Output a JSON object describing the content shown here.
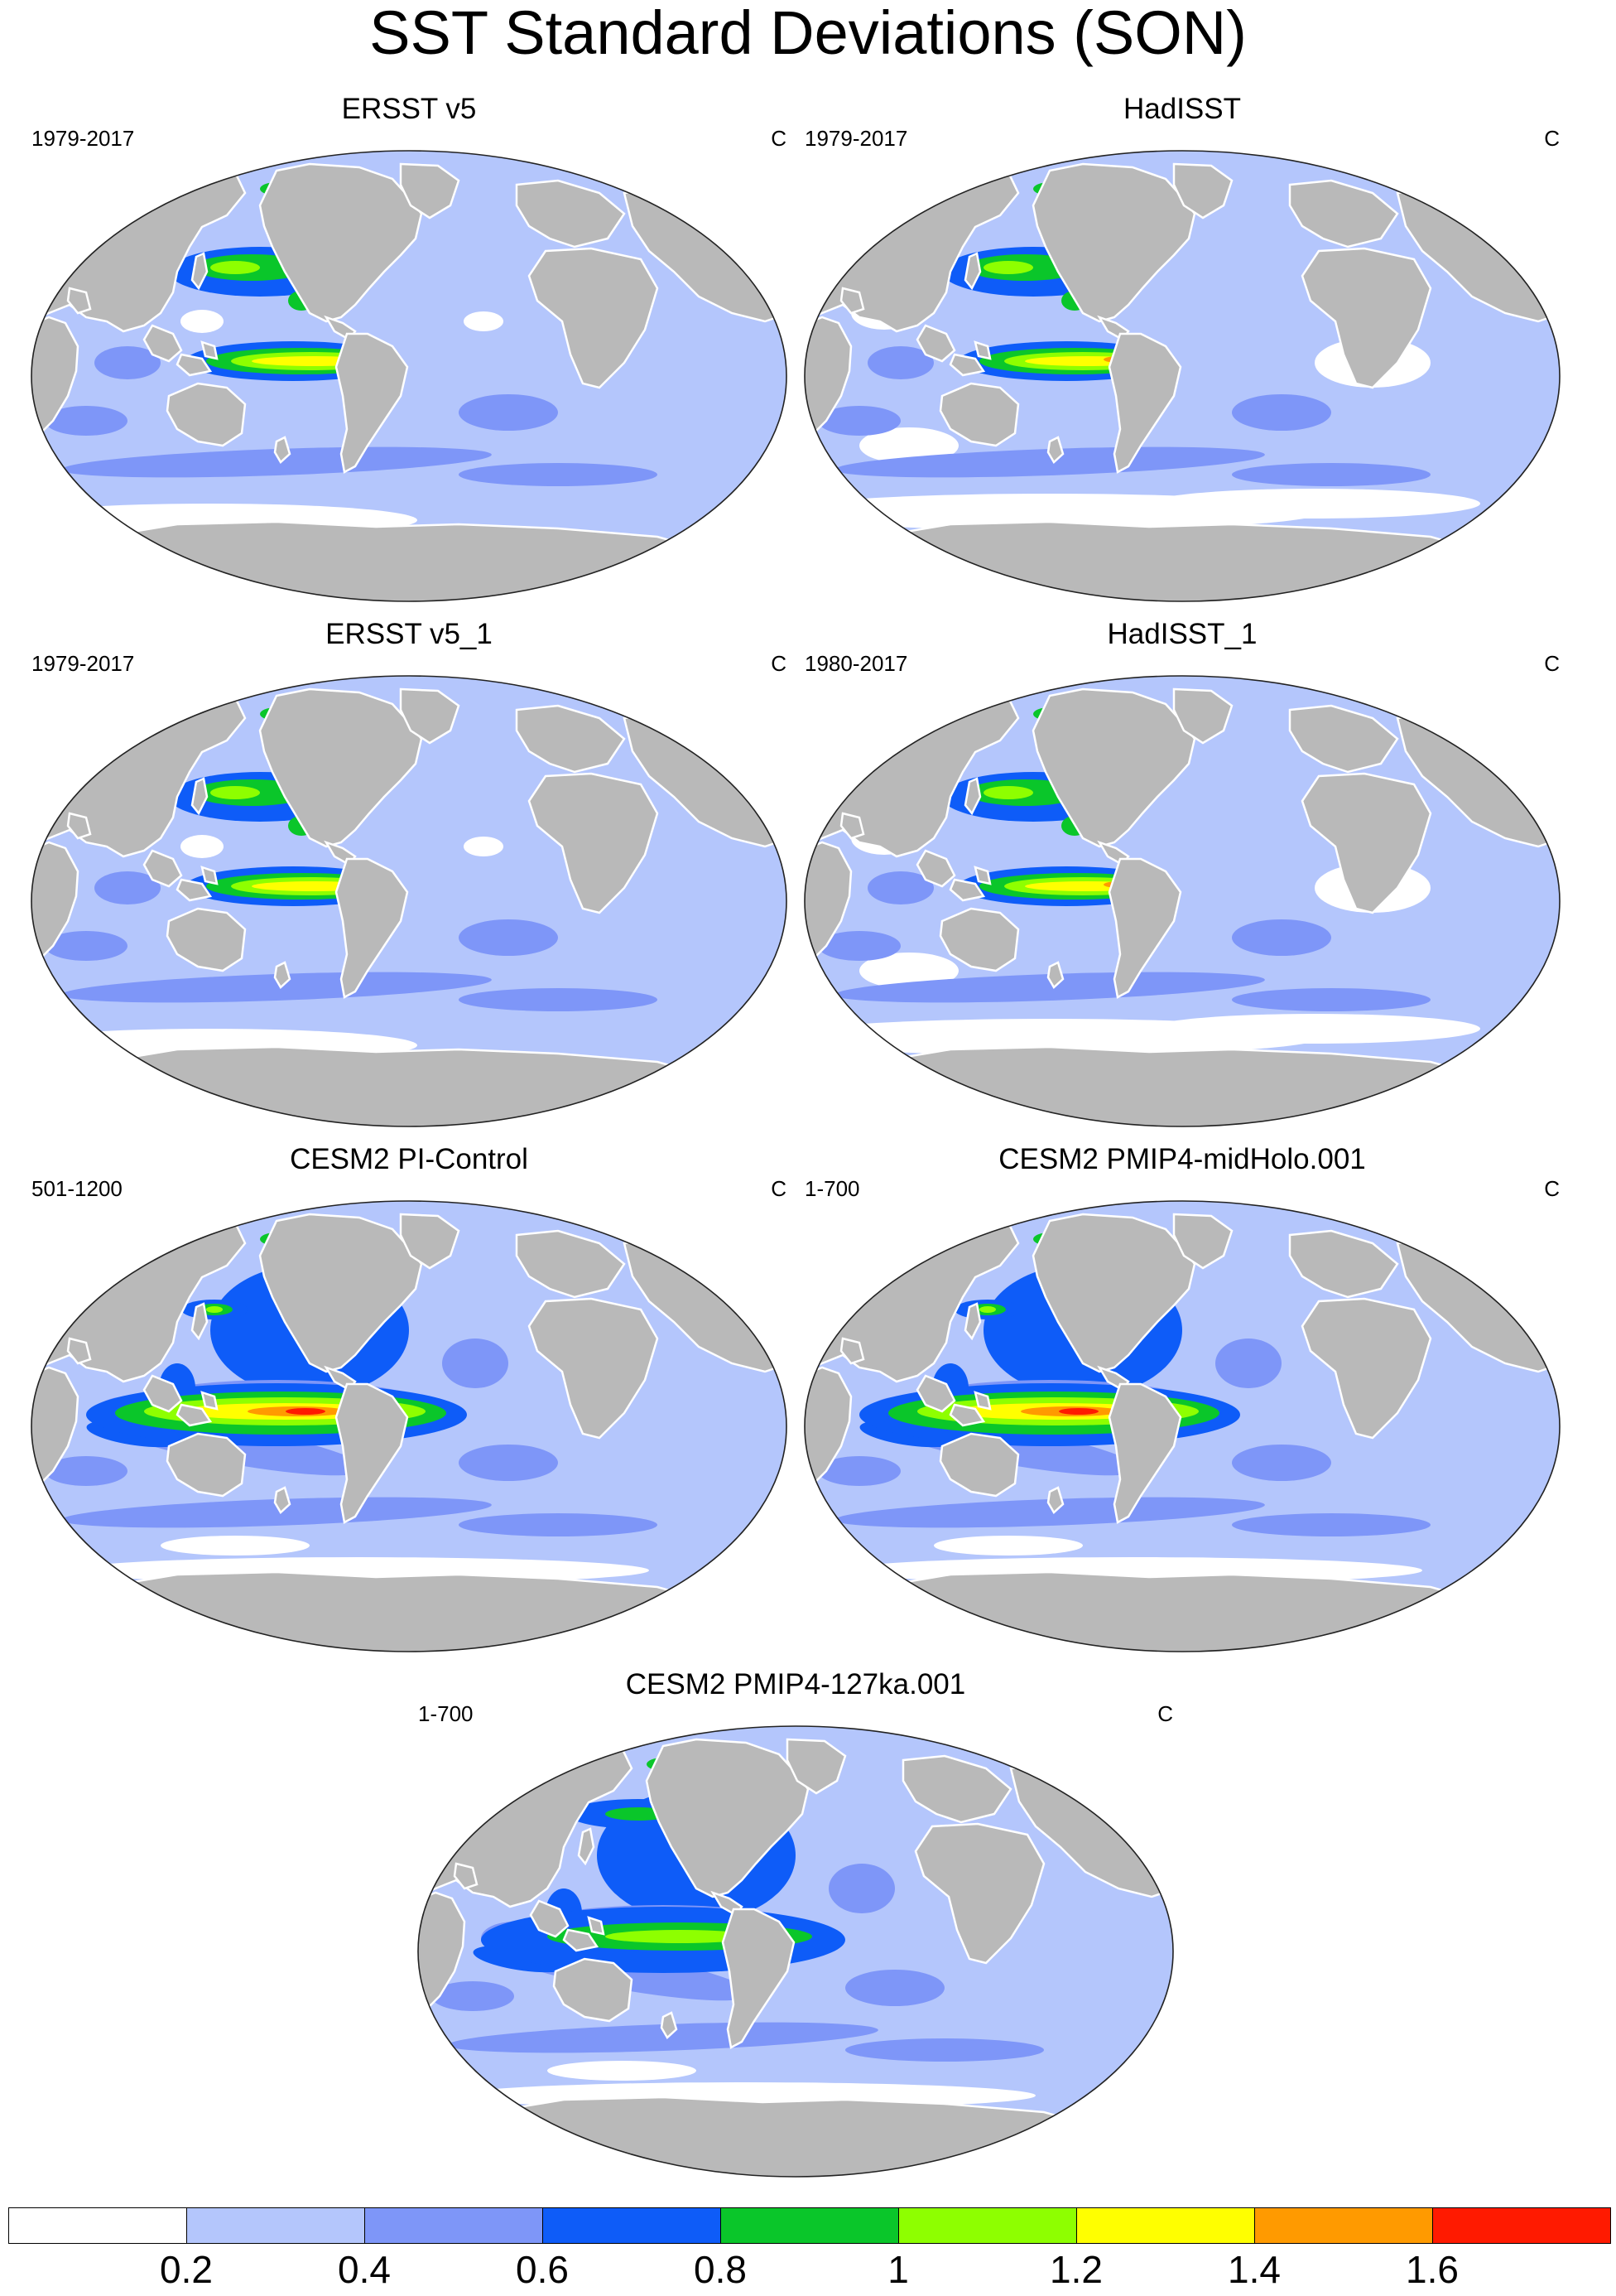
{
  "title": "SST Standard Deviations (SON)",
  "panels": [
    {
      "title": "ERSST v5",
      "left": "1979-2017",
      "right": "C",
      "style": "obs"
    },
    {
      "title": "HadISST",
      "left": "1979-2017",
      "right": "C",
      "style": "had"
    },
    {
      "title": "ERSST v5_1",
      "left": "1979-2017",
      "right": "C",
      "style": "obs"
    },
    {
      "title": "HadISST_1",
      "left": "1980-2017",
      "right": "C",
      "style": "had"
    },
    {
      "title": "CESM2 PI-Control",
      "left": "501-1200",
      "right": "C",
      "style": "model"
    },
    {
      "title": "CESM2 PMIP4-midHolo.001",
      "left": "1-700",
      "right": "C",
      "style": "model"
    },
    {
      "title": "CESM2 PMIP4-127ka.001",
      "left": "1-700",
      "right": "C",
      "style": "weak"
    }
  ],
  "colorbar": {
    "colors": [
      "#ffffff",
      "#b4c6fc",
      "#7e96f8",
      "#0e5cf8",
      "#0ac62a",
      "#8eff00",
      "#ffff00",
      "#ff9a00",
      "#ff1a00"
    ],
    "labels": [
      "0.2",
      "0.4",
      "0.6",
      "0.8",
      "1",
      "1.2",
      "1.4",
      "1.6"
    ]
  },
  "colors": {
    "land": "#b9b9b9",
    "ocean_base": "#b4c6fc"
  }
}
